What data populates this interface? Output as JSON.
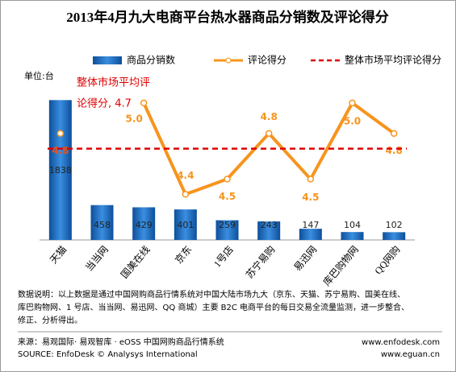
{
  "chart_data": {
    "type": "bar_line",
    "title": "2013年4月九大电商平台热水器商品分销数及评论得分",
    "unit_label": "单位:台",
    "categories": [
      "天猫",
      "当当网",
      "国美在线",
      "京东",
      "1号店",
      "苏宁易购",
      "易迅网",
      "库巴购物网",
      "QQ网购"
    ],
    "series": [
      {
        "name": "商品分销数",
        "type": "bar",
        "color": "#1f6fc0",
        "values": [
          1838,
          458,
          429,
          401,
          259,
          243,
          147,
          104,
          102
        ]
      },
      {
        "name": "评论得分",
        "type": "line",
        "axis": "y2",
        "color": "#f7941d",
        "values": [
          4.8,
          null,
          5.0,
          4.4,
          4.5,
          4.8,
          4.5,
          5.0,
          4.8
        ],
        "value_labels": [
          "4.8",
          null,
          "5.0",
          "4.4",
          "4.5",
          "4.8",
          "4.5",
          "5.0",
          "4.8"
        ]
      },
      {
        "name": "整体市场平均评论得分",
        "type": "reference",
        "axis": "y2",
        "color": "#e00000",
        "value": 4.7
      }
    ],
    "annotation_lines": [
      "整体市场平均评",
      "论得分, 4.7"
    ],
    "ylim": [
      0,
      2000
    ],
    "y2lim": [
      4.1,
      5.1
    ],
    "notes": [
      "数据说明：以上数据是通过中国网购商品行情系统对中国大陆市场九大（京东、天猫、苏宁易购、国美在线、",
      "库巴购物网、1 号店、当当网、易迅网、QQ 商城）主要 B2C 电商平台的每日交易全流量监测，进一步整合、",
      "修正、分析得出。"
    ],
    "source": [
      "来源：易观国际· 易观智库 · eOSS 中国网购商品行情系统",
      "www.enfodesk.com",
      "SOURCE: EnfoDesk © Analysys International",
      "www.eguan.cn"
    ]
  }
}
